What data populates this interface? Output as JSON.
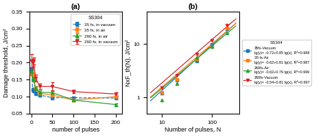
{
  "chart_data": [
    {
      "type": "line",
      "title": "(a)",
      "x_label": "number of pulses",
      "y_label": "Damage threshold, J/cm²",
      "xlim": [
        -5,
        215
      ],
      "xticks": [
        0,
        50,
        100,
        150,
        200
      ],
      "ylim": [
        0.05,
        0.35
      ],
      "yticks": [
        0.05,
        {
          "value": 0.1,
          "label": "0.10"
        },
        0.15,
        {
          "value": 0.2,
          "label": "0.20"
        },
        0.25,
        {
          "value": 0.3,
          "label": "0.30"
        },
        0.35
      ],
      "legend": "upper right",
      "legend_title": "SS304",
      "series": [
        {
          "name": "35 fs, in vacuum",
          "marker": "s",
          "line_style": "dashed",
          "x": [
            1,
            3,
            5,
            10,
            20,
            50,
            100,
            200
          ],
          "values": [
            0.178,
            0.12,
            0.118,
            0.11,
            0.105,
            0.097,
            0.097,
            0.096
          ],
          "errors": [
            0.008,
            0.006,
            0.005,
            0.005,
            0.004,
            0.004,
            0.004,
            0.004
          ]
        },
        {
          "name": "35 fs, in air",
          "marker": "s",
          "line_style": "solid",
          "x": [
            1,
            3,
            5,
            10,
            20,
            50,
            100,
            200
          ],
          "values": [
            0.17,
            0.165,
            0.16,
            0.125,
            0.11,
            0.105,
            0.09,
            0.1
          ],
          "errors": [
            0.008,
            0.006,
            0.005,
            0.005,
            0.004,
            0.004,
            0.004,
            0.004
          ]
        },
        {
          "name": "260 fs, in air",
          "marker": "^",
          "line_style": "solid",
          "x": [
            1,
            3,
            5,
            10,
            20,
            50,
            100,
            200
          ],
          "values": [
            0.175,
            0.155,
            0.15,
            0.125,
            0.113,
            0.112,
            0.09,
            0.077
          ],
          "errors": [
            0.01,
            0.008,
            0.006,
            0.006,
            0.005,
            0.004,
            0.004,
            0.004
          ]
        },
        {
          "name": "260 fs, in vacuum",
          "marker": "v",
          "line_style": "solid",
          "x": [
            1,
            3,
            5,
            10,
            20,
            50,
            100,
            200
          ],
          "values": [
            0.205,
            0.2,
            0.205,
            0.155,
            0.13,
            0.13,
            0.115,
            0.108
          ],
          "errors": [
            0.02,
            0.012,
            0.01,
            0.01,
            0.008,
            0.012,
            0.005,
            0.005
          ]
        }
      ]
    },
    {
      "type": "scatter",
      "title": "(b)",
      "x_label": "Number of pulses, N",
      "y_label": "NxF_th(N), J/cm²",
      "log": true,
      "xlim": [
        5,
        350
      ],
      "xticks": [
        10,
        100
      ],
      "ylim": [
        0.5,
        40
      ],
      "yticks": [
        1,
        10
      ],
      "legend": "right",
      "legend_title": "SS304",
      "series": [
        {
          "name": "35fs-Vacuum",
          "annotation": "lg(y)= -0.72+0.85 lg(x), R²=0.988",
          "marker": "s",
          "x": [
            10,
            20,
            50,
            100,
            200
          ],
          "values": [
            1.2,
            2.1,
            4.8,
            9.7,
            19.0
          ],
          "fit": {
            "x": [
              6,
              300
            ],
            "values": [
              0.8738,
              24.297
            ]
          }
        },
        {
          "name": "35 fs-Air",
          "annotation": "lg(y)= -0.62+0.81 lg(x), R²=0.987",
          "marker": "s",
          "x": [
            10,
            20,
            50,
            100,
            200
          ],
          "values": [
            1.25,
            2.2,
            5.2,
            9.0,
            20.0
          ],
          "fit": {
            "x": [
              6,
              300
            ],
            "values": [
              1.024,
              24.348
            ]
          }
        },
        {
          "name": "260fs-Air",
          "annotation": "lg(y)= -0.62+0.79 lg(x), R²=0.999",
          "marker": "^",
          "x": [
            10,
            20,
            50,
            100,
            200
          ],
          "values": [
            0.9,
            1.8,
            5.6,
            9.0,
            16.0
          ],
          "fit": {
            "x": [
              6,
              300
            ],
            "values": [
              0.988,
              21.723
            ]
          }
        },
        {
          "name": "260fs-Vacuum",
          "annotation": "lg(y)= -0.54+0.81 lg(x), R²=0.997",
          "marker": "v",
          "x": [
            10,
            20,
            50,
            100,
            200
          ],
          "values": [
            1.55,
            2.6,
            6.5,
            11.5,
            22.0
          ],
          "fit": {
            "x": [
              6,
              300
            ],
            "values": [
              1.2311,
              29.273
            ]
          }
        }
      ]
    }
  ]
}
